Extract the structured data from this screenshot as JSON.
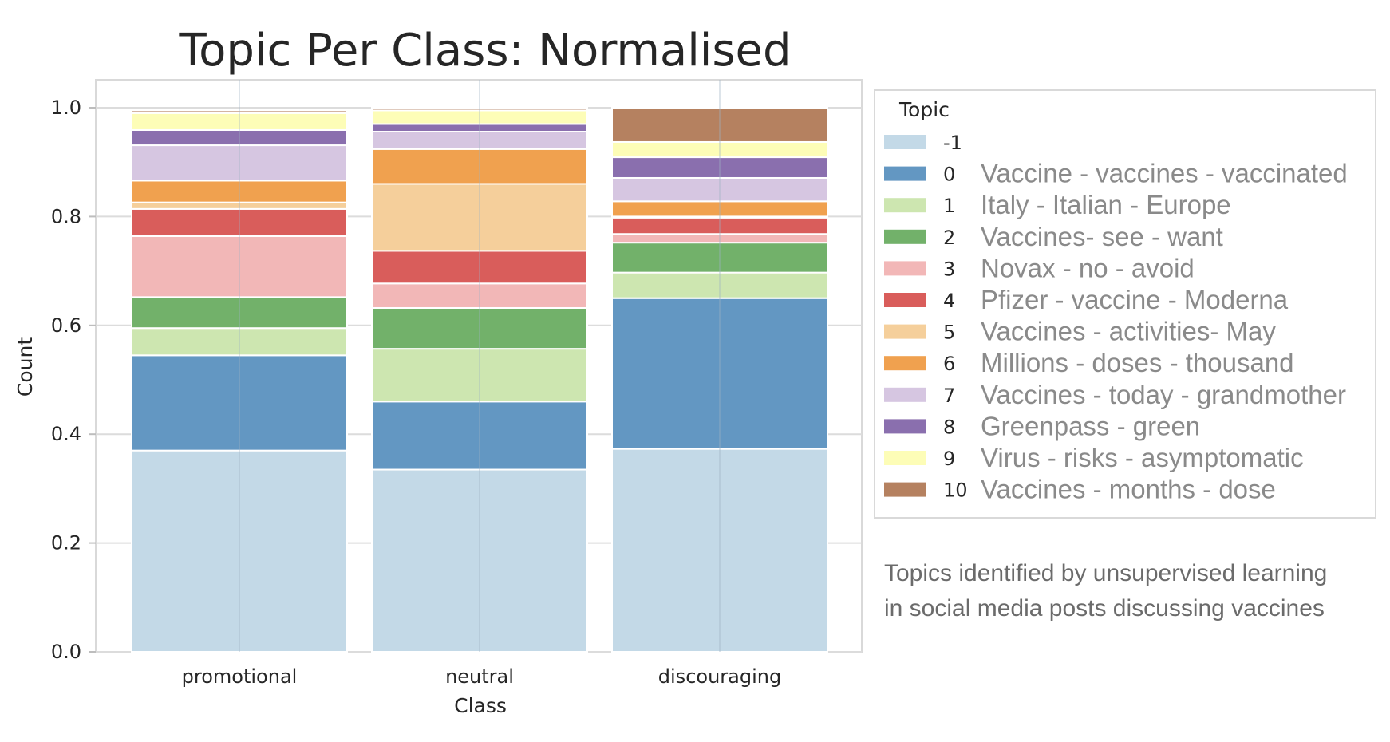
{
  "chart_data": {
    "type": "bar",
    "stacked": true,
    "title": "Topic Per Class: Normalised",
    "xlabel": "Class",
    "ylabel": "Count",
    "ylim": [
      0,
      1.05
    ],
    "yticks": [
      "0.0",
      "0.2",
      "0.4",
      "0.6",
      "0.8",
      "1.0"
    ],
    "grid": true,
    "categories": [
      "promotional",
      "neutral",
      "discouraging"
    ],
    "legend": {
      "title": "Topic",
      "placement": "right"
    },
    "series": [
      {
        "name": "-1",
        "description": "",
        "color": "#c3d9e7",
        "values": [
          0.37,
          0.335,
          0.373
        ]
      },
      {
        "name": "0",
        "description": "Vaccine - vaccines - vaccinated",
        "color": "#6397c2",
        "values": [
          0.175,
          0.125,
          0.277
        ]
      },
      {
        "name": "1",
        "description": "Italy - Italian - Europe",
        "color": "#cde6b0",
        "values": [
          0.05,
          0.097,
          0.047
        ]
      },
      {
        "name": "2",
        "description": "Vaccines- see - want",
        "color": "#72b16a",
        "values": [
          0.057,
          0.075,
          0.055
        ]
      },
      {
        "name": "3",
        "description": "Novax - no - avoid",
        "color": "#f2b7b7",
        "values": [
          0.112,
          0.045,
          0.016
        ]
      },
      {
        "name": "4",
        "description": "Pfizer - vaccine - Moderna",
        "color": "#d95d5b",
        "values": [
          0.05,
          0.06,
          0.03
        ]
      },
      {
        "name": "5",
        "description": "Vaccines - activities- May",
        "color": "#f5cf9b",
        "values": [
          0.012,
          0.123,
          0.002
        ]
      },
      {
        "name": "6",
        "description": "Millions - doses - thousand",
        "color": "#f0a14f",
        "values": [
          0.04,
          0.064,
          0.028
        ]
      },
      {
        "name": "7",
        "description": "Vaccines - today - grandmother",
        "color": "#d6c6e1",
        "values": [
          0.065,
          0.032,
          0.043
        ]
      },
      {
        "name": "8",
        "description": "Greenpass - green",
        "color": "#8a6fae",
        "values": [
          0.028,
          0.014,
          0.038
        ]
      },
      {
        "name": "9",
        "description": "Virus - risks - asymptomatic",
        "color": "#fdfdb7",
        "values": [
          0.031,
          0.025,
          0.028
        ]
      },
      {
        "name": "10",
        "description": "Vaccines - months - dose",
        "color": "#b58160",
        "values": [
          0.005,
          0.005,
          0.063
        ]
      }
    ]
  },
  "annotation": {
    "line1": "Topics identified by unsupervised learning",
    "line2": "in social media posts discussing vaccines"
  }
}
